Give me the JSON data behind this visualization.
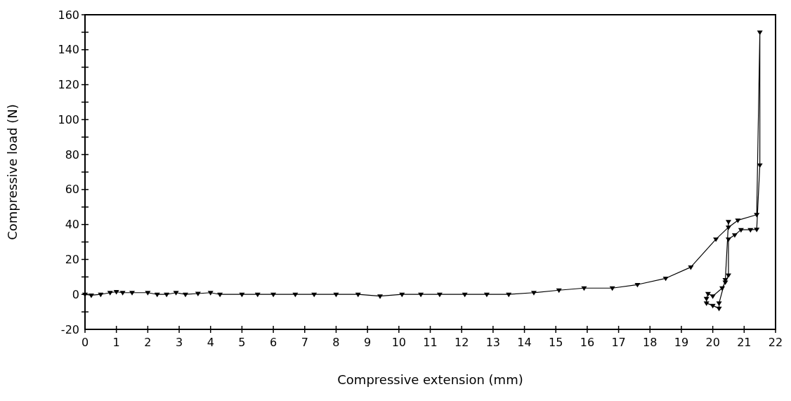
{
  "chart_data": {
    "type": "line",
    "xlabel": "Compressive extension (mm)",
    "ylabel": "Compressive load (N)",
    "xlim": [
      0,
      22
    ],
    "xticks": [
      0,
      1,
      2,
      3,
      4,
      5,
      6,
      7,
      8,
      9,
      10,
      11,
      12,
      13,
      14,
      15,
      16,
      17,
      18,
      19,
      20,
      21,
      22
    ],
    "ylim": [
      -20,
      160
    ],
    "yticks": [
      -20,
      {
        "value": -10,
        "label": null
      },
      0,
      {
        "value": 10,
        "label": null
      },
      20,
      {
        "value": 30,
        "label": null
      },
      40,
      {
        "value": 50,
        "label": null
      },
      60,
      {
        "value": 70,
        "label": null
      },
      80,
      {
        "value": 90,
        "label": null
      },
      100,
      {
        "value": 110,
        "label": null
      },
      120,
      {
        "value": 130,
        "label": null
      },
      140,
      {
        "value": 150,
        "label": null
      },
      160
    ],
    "grid": false,
    "marker": "triangle",
    "line_style": "solid",
    "series": [
      {
        "color": "#000000",
        "x": [
          0,
          0.2,
          0.5,
          0.8,
          1.0,
          1.2,
          1.5,
          2.0,
          2.3,
          2.6,
          2.9,
          3.2,
          3.6,
          4.0,
          4.3,
          5,
          5.5,
          6,
          6.7,
          7.3,
          8,
          8.7,
          9.4,
          10.1,
          10.7,
          11.3,
          12.1,
          12.8,
          13.5,
          14.3,
          15.1,
          15.9,
          16.8,
          17.6,
          18.5,
          19.3,
          20.1,
          20.5,
          20.8,
          21.4,
          21.5,
          21.5,
          21.4,
          21.2,
          20.9,
          20.7,
          20.5,
          20.5,
          20.4,
          20.3,
          20.0,
          19.85,
          19.8,
          19.8,
          20.0,
          20.2,
          20.2,
          20.4,
          20.5
        ],
        "values": [
          0,
          -0.5,
          0,
          1,
          1.5,
          1,
          1,
          1,
          0,
          0,
          1,
          0,
          0.5,
          1,
          0,
          0,
          0,
          0,
          0,
          0,
          0,
          0,
          -1,
          0,
          0,
          0,
          0,
          0,
          0,
          1,
          2.4,
          3.6,
          3.6,
          5.6,
          9.2,
          15.6,
          31.6,
          38.4,
          42.4,
          45.6,
          150,
          74,
          37.2,
          37,
          37,
          34,
          31.6,
          11,
          7,
          3.6,
          -1,
          0.4,
          -2.4,
          -5,
          -6.4,
          -8,
          -5,
          8.4,
          41.6
        ]
      }
    ]
  }
}
